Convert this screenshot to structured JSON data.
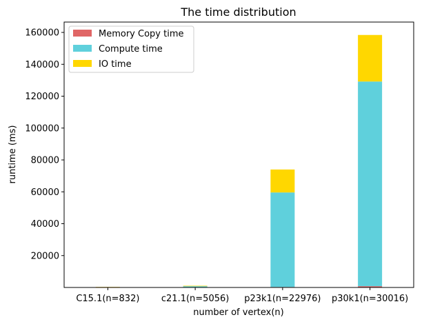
{
  "chart_data": {
    "type": "bar",
    "stacked": true,
    "title": "The time distribution",
    "xlabel": "number of vertex(n)",
    "ylabel": "runtime (ms)",
    "categories": [
      "C15.1(n=832)",
      "c21.1(n=5056)",
      "p23k1(n=22976)",
      "p30k1(n=30016)"
    ],
    "series": [
      {
        "name": "Memory Copy time",
        "color": "#e06666",
        "values": [
          20,
          80,
          300,
          800
        ]
      },
      {
        "name": "Compute time",
        "color": "#5fd0dc",
        "values": [
          150,
          700,
          59300,
          128400
        ]
      },
      {
        "name": "IO time",
        "color": "#ffd700",
        "values": [
          150,
          300,
          14400,
          29200
        ]
      }
    ],
    "ylim": [
      0,
      166500
    ],
    "yticks": [
      20000,
      40000,
      60000,
      80000,
      100000,
      120000,
      140000,
      160000
    ],
    "ytick_labels": [
      "20000",
      "40000",
      "60000",
      "80000",
      "100000",
      "120000",
      "140000",
      "160000"
    ],
    "legend_position": "top-left",
    "grid": false
  }
}
